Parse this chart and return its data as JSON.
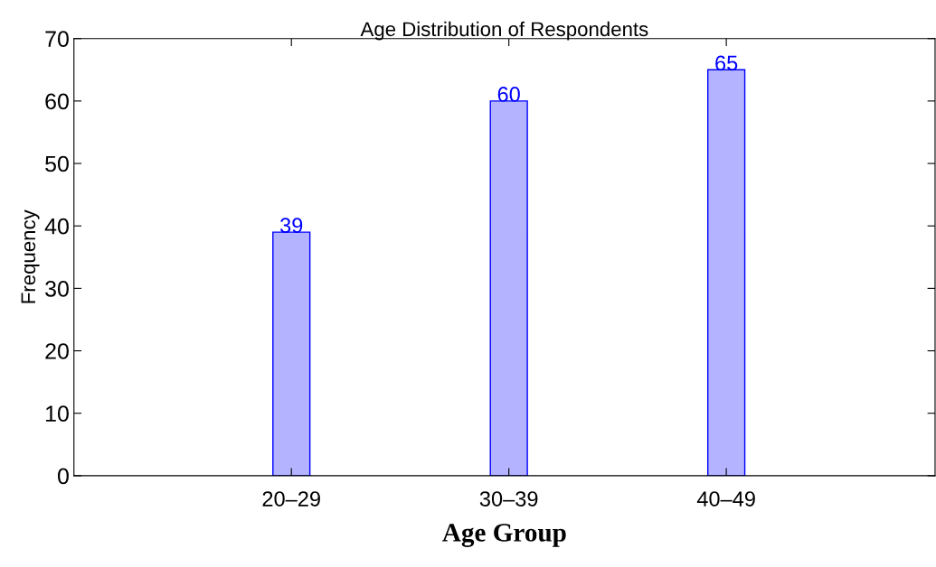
{
  "chart_data": {
    "type": "bar",
    "title": "Age Distribution of Respondents",
    "xlabel": "Age Group",
    "ylabel": "Frequency",
    "categories": [
      "20–29",
      "30–39",
      "40–49"
    ],
    "series": [
      {
        "color": "#b3b3ff",
        "values": [
          39,
          60,
          65
        ]
      }
    ],
    "ylim": [
      0,
      70
    ],
    "yticks": [
      0,
      10,
      20,
      30,
      40,
      50,
      60,
      70
    ],
    "data_labels": true,
    "grid": false,
    "legend": false
  }
}
